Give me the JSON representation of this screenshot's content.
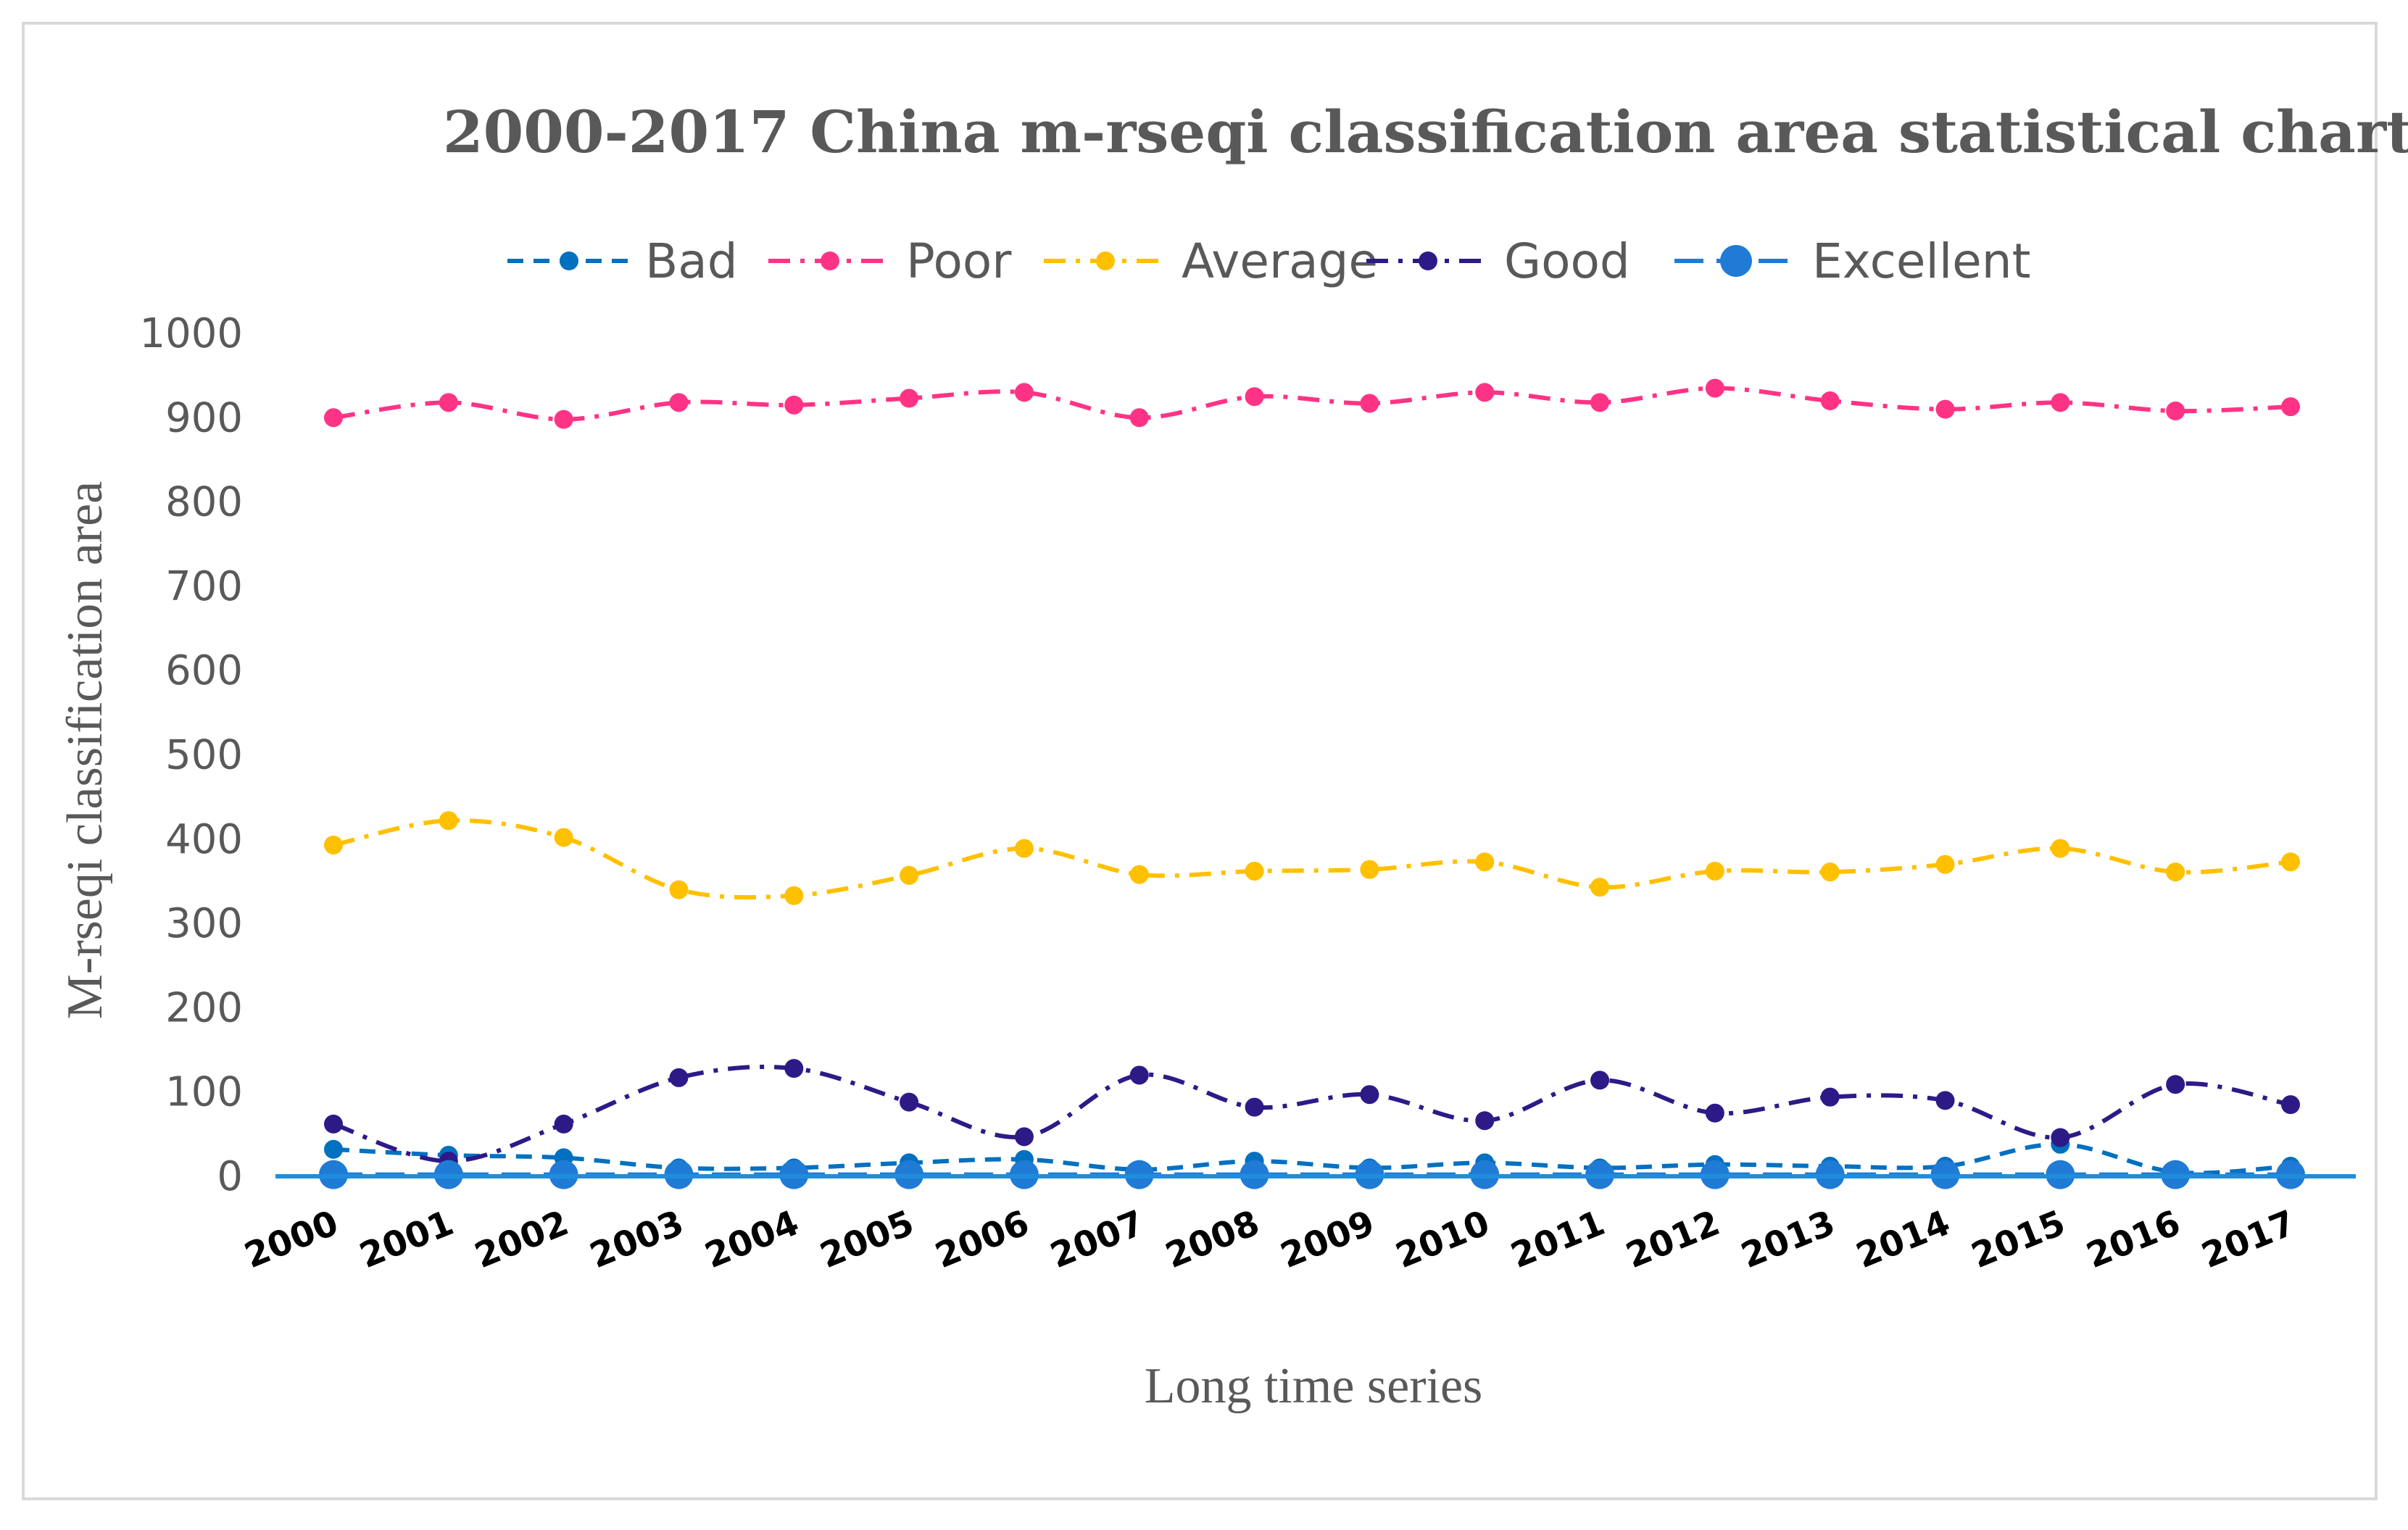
{
  "chart_data": {
    "type": "line",
    "title": "2000-2017 China m-rseqi classification area statistical chart",
    "xlabel": "Long time series",
    "ylabel": "M-rseqi classification area",
    "ylim": [
      0,
      1000
    ],
    "yticks": [
      "0",
      "100",
      "200",
      "300",
      "400",
      "500",
      "600",
      "700",
      "800",
      "900",
      "1000"
    ],
    "grid": false,
    "legend": "top",
    "categories": [
      "2000",
      "2001",
      "2002",
      "2003",
      "2004",
      "2005",
      "2006",
      "2007",
      "2008",
      "2009",
      "2010",
      "2011",
      "2012",
      "2013",
      "2014",
      "2015",
      "2016",
      "2017"
    ],
    "series": [
      {
        "name": "Bad",
        "color": "#0070c0",
        "dash": "short",
        "marker_size": "small",
        "values": [
          32,
          25,
          22,
          10,
          10,
          16,
          20,
          8,
          18,
          10,
          16,
          10,
          14,
          12,
          12,
          38,
          5,
          12
        ]
      },
      {
        "name": "Poor",
        "color": "#ff3385",
        "dash": "dash-dot",
        "marker_size": "small",
        "values": [
          900,
          918,
          898,
          918,
          915,
          923,
          930,
          900,
          925,
          917,
          930,
          918,
          935,
          920,
          910,
          918,
          908,
          913
        ]
      },
      {
        "name": "Average",
        "color": "#ffc000",
        "dash": "dash-dot",
        "marker_size": "small",
        "values": [
          393,
          422,
          402,
          340,
          333,
          357,
          389,
          358,
          362,
          364,
          373,
          343,
          362,
          361,
          370,
          389,
          361,
          373
        ]
      },
      {
        "name": "Good",
        "color": "#2e1a87",
        "dash": "dash-dot",
        "marker_size": "small",
        "values": [
          62,
          18,
          62,
          117,
          128,
          88,
          47,
          120,
          82,
          97,
          66,
          114,
          75,
          94,
          90,
          46,
          109,
          85
        ]
      },
      {
        "name": "Excellent",
        "color": "#1f7bd6",
        "dash": "long",
        "marker_size": "large",
        "values": [
          2,
          2,
          2,
          2,
          2,
          2,
          2,
          2,
          2,
          2,
          2,
          2,
          2,
          2,
          2,
          2,
          2,
          2
        ]
      }
    ]
  }
}
